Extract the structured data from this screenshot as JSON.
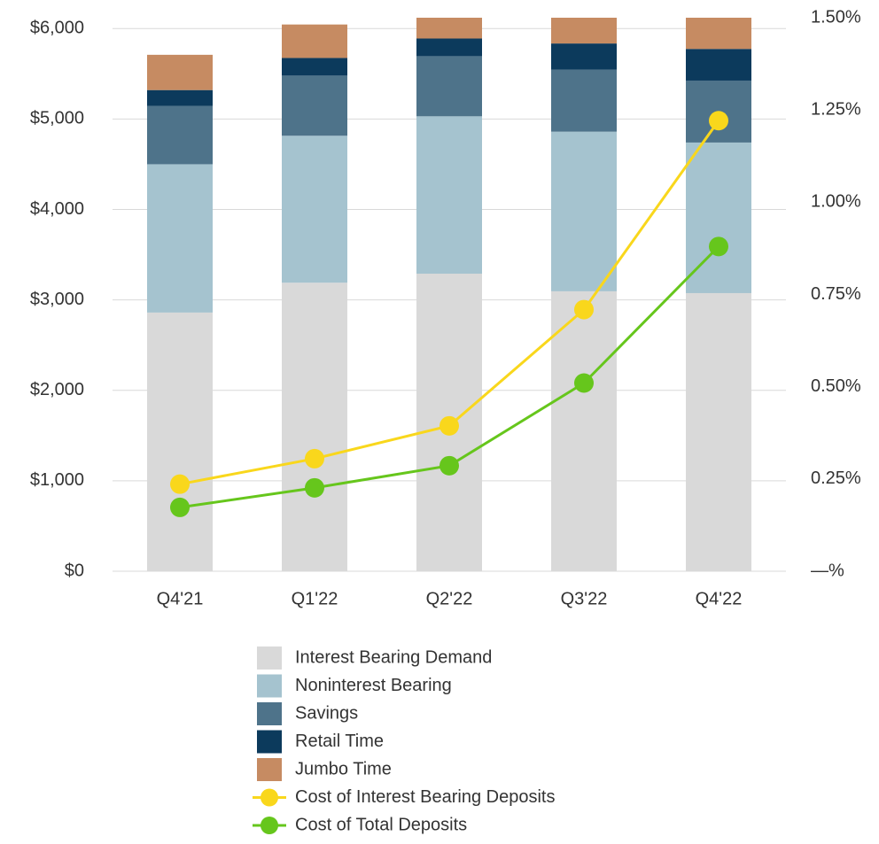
{
  "chart_data": {
    "type": "bar",
    "categories": [
      "Q4'21",
      "Q1'22",
      "Q2'22",
      "Q3'22",
      "Q4'22"
    ],
    "series": [
      {
        "name": "Interest Bearing Demand",
        "color": "#d9d9d9",
        "values": [
          2860,
          3190,
          3290,
          3095,
          3075
        ]
      },
      {
        "name": "Noninterest Bearing",
        "color": "#a5c3cf",
        "values": [
          1640,
          1625,
          1740,
          1765,
          1665
        ]
      },
      {
        "name": "Savings",
        "color": "#4e738a",
        "values": [
          645,
          665,
          665,
          685,
          685
        ]
      },
      {
        "name": "Retail Time",
        "color": "#0c3a5c",
        "values": [
          175,
          195,
          195,
          290,
          350
        ]
      },
      {
        "name": "Jumbo Time",
        "color": "#c68b62",
        "values": [
          390,
          370,
          230,
          285,
          345
        ]
      },
      {
        "name": "Cost of Interest Bearing Deposits",
        "type": "line",
        "axis": "y2",
        "color": "#f9d71c",
        "values": [
          0.236,
          0.305,
          0.394,
          0.709,
          1.221
        ]
      },
      {
        "name": "Cost of Total Deposits",
        "type": "line",
        "axis": "y2",
        "color": "#66c61c",
        "values": [
          0.173,
          0.226,
          0.286,
          0.51,
          0.88
        ]
      }
    ],
    "ylim": [
      0,
      6120
    ],
    "yticks": [
      {
        "value": 0,
        "label": "$0"
      },
      {
        "value": 1000,
        "label": "$1,000"
      },
      {
        "value": 2000,
        "label": "$2,000"
      },
      {
        "value": 3000,
        "label": "$3,000"
      },
      {
        "value": 4000,
        "label": "$4,000"
      },
      {
        "value": 5000,
        "label": "$5,000"
      },
      {
        "value": 6000,
        "label": "$6,000"
      }
    ],
    "y2lim": [
      0,
      1.5
    ],
    "y2ticks": [
      {
        "value": 0,
        "label": "—%"
      },
      {
        "value": 0.25,
        "label": "0.25%"
      },
      {
        "value": 0.5,
        "label": "0.50%"
      },
      {
        "value": 0.75,
        "label": "0.75%"
      },
      {
        "value": 1.0,
        "label": "1.00%"
      },
      {
        "value": 1.25,
        "label": "1.25%"
      },
      {
        "value": 1.5,
        "label": "1.50%"
      }
    ],
    "grid": true,
    "stacked": true,
    "legend": "bottom"
  }
}
